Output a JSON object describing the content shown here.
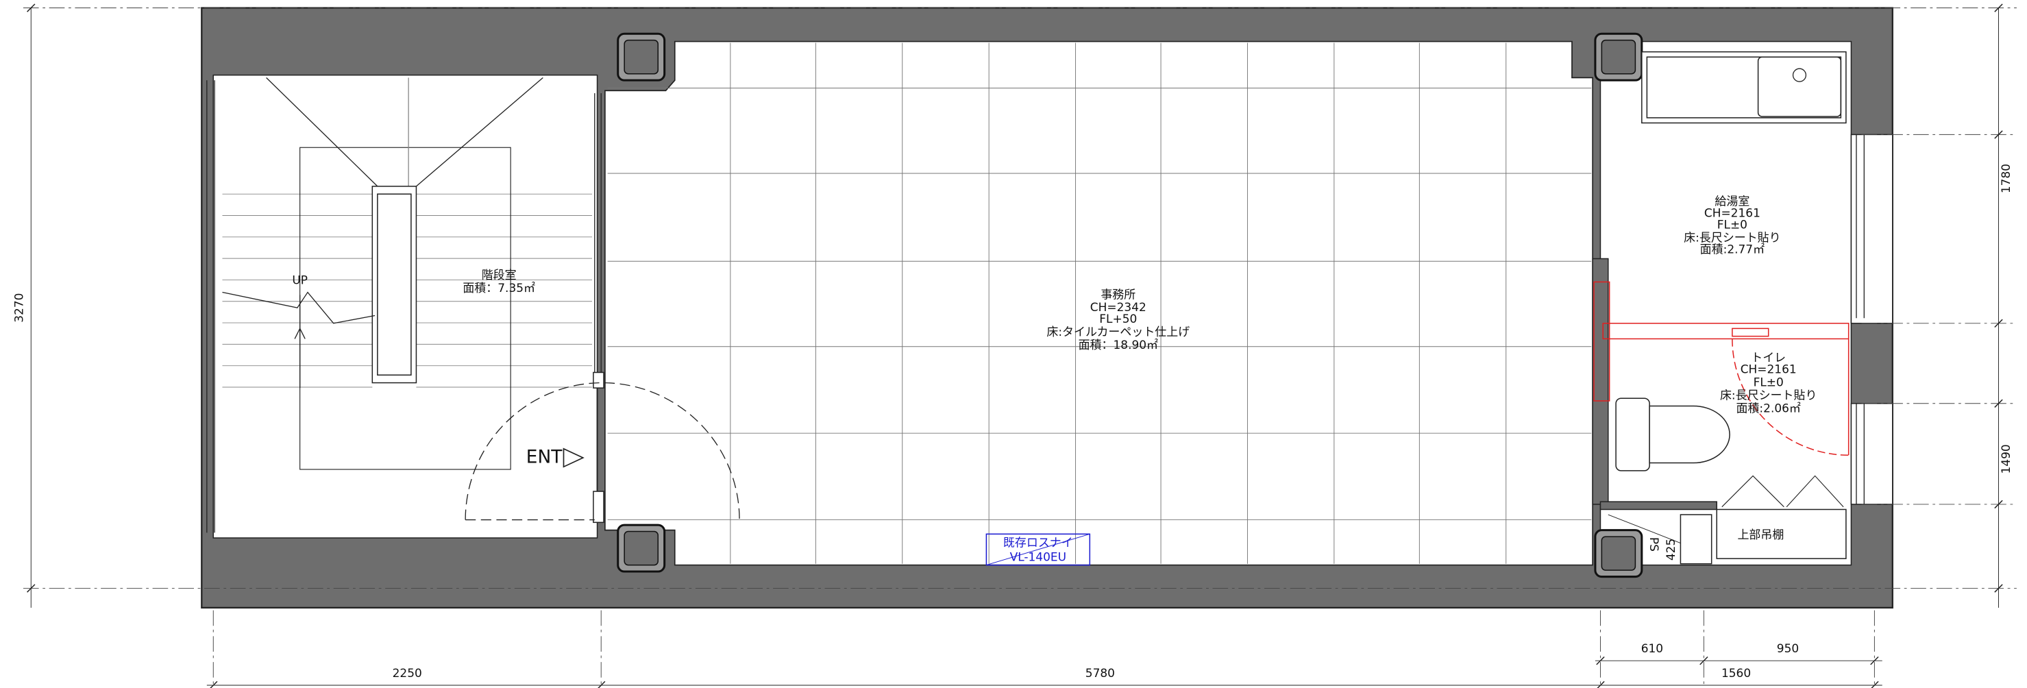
{
  "stair_room": {
    "name": "階段室",
    "area": "面積：7.35㎡",
    "up": "UP",
    "entrance": "ENT"
  },
  "office": {
    "name": "事務所",
    "ceiling": "CH=2342",
    "floor_level": "FL+50",
    "finish": "床:タイルカーペット仕上げ",
    "area": "面積：18.90㎡"
  },
  "kitchenette": {
    "name": "給湯室",
    "ceiling": "CH=2161",
    "floor_level": "FL±0",
    "finish": "床:長尺シート貼り",
    "area": "面積:2.77㎡"
  },
  "toilet": {
    "name": "トイレ",
    "ceiling": "CH=2161",
    "floor_level": "FL±0",
    "finish": "床:長尺シート貼り",
    "area": "面積:2.06㎡"
  },
  "shelf": "上部吊棚",
  "pipe_space": {
    "label": "PS",
    "size": "425"
  },
  "ventilator": {
    "name": "既存ロスナイ",
    "model": "VL-140EU"
  },
  "dimensions": {
    "overall_depth": "3270",
    "kitchen_depth": "1780",
    "toilet_depth": "1490",
    "stair_width": "2250",
    "office_width": "5780",
    "toilet_width": "610",
    "shelf_width": "950",
    "wet_width": "1560"
  }
}
